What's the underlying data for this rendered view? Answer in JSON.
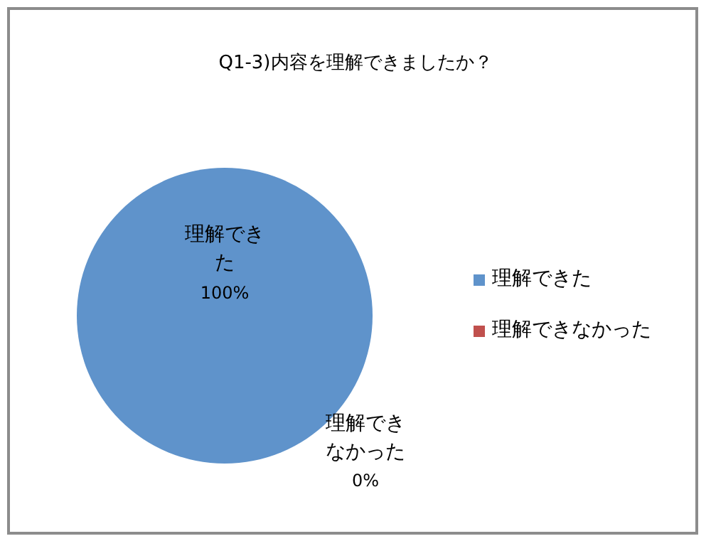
{
  "chart_data": {
    "type": "pie",
    "title": "Q1-3)内容を理解できましたか？",
    "categories": [
      "理解できた",
      "理解できなかった"
    ],
    "values": [
      100,
      0
    ],
    "colors": [
      "#5f93cb",
      "#c0504d"
    ],
    "value_labels": [
      "100%",
      "0%"
    ],
    "legend": "right"
  }
}
